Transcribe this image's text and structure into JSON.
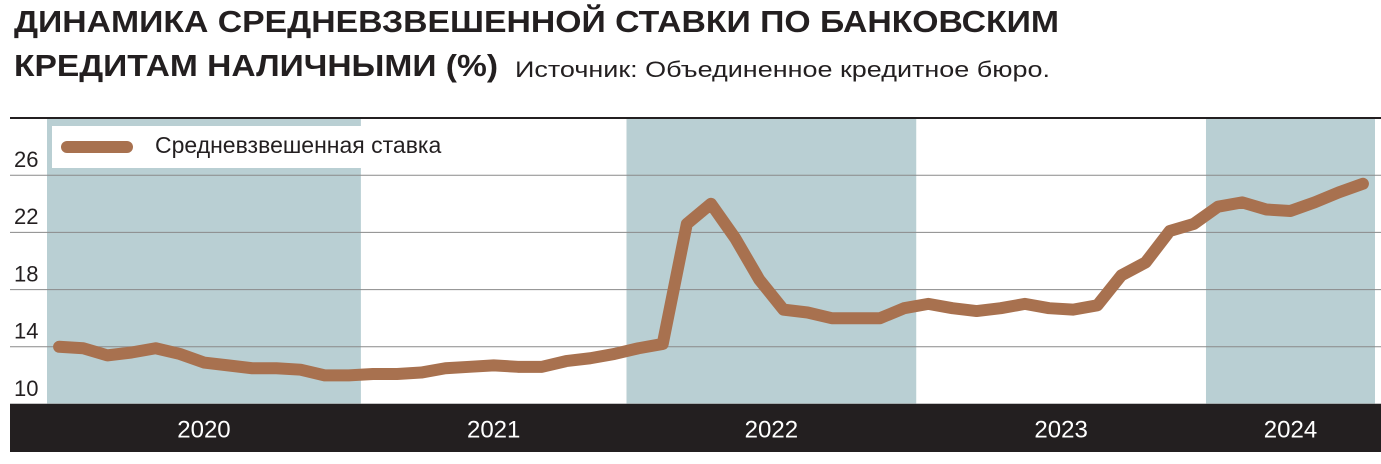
{
  "chart_data": {
    "type": "line",
    "title": [
      "ДИНАМИКА СРЕДНЕВЗВЕШЕННОЙ СТАВКИ ПО БАНКОВСКИМ",
      "КРЕДИТАМ НАЛИЧНЫМИ (%)"
    ],
    "source": "Источник: Объединенное кредитное бюро.",
    "categories": [
      "2020",
      "2020",
      "2020",
      "2020",
      "2020",
      "2020",
      "2020",
      "2020",
      "2020",
      "2020",
      "2020",
      "2020",
      "2020",
      "2021",
      "2021",
      "2021",
      "2021",
      "2021",
      "2021",
      "2021",
      "2021",
      "2021",
      "2021",
      "2021",
      "2022",
      "2022",
      "2022",
      "2022",
      "2022",
      "2022",
      "2022",
      "2022",
      "2022",
      "2022",
      "2022",
      "2022",
      "2023",
      "2023",
      "2023",
      "2023",
      "2023",
      "2023",
      "2023",
      "2023",
      "2023",
      "2023",
      "2023",
      "2023",
      "2024",
      "2024",
      "2024",
      "2024",
      "2024",
      "2024",
      "2024"
    ],
    "series": [
      {
        "name": "Средневзвешенная ставка",
        "color": "#a8714f",
        "values": [
          14.0,
          13.9,
          13.4,
          13.6,
          13.9,
          13.5,
          12.9,
          12.7,
          12.5,
          12.5,
          12.4,
          12.0,
          12.0,
          12.1,
          12.1,
          12.2,
          12.5,
          12.6,
          12.7,
          12.6,
          12.6,
          13.0,
          13.2,
          13.5,
          13.9,
          14.2,
          22.6,
          24.0,
          21.6,
          18.7,
          16.6,
          16.4,
          16.0,
          16.0,
          16.0,
          16.7,
          17.0,
          16.7,
          16.5,
          16.7,
          17.0,
          16.7,
          16.6,
          16.9,
          19.0,
          19.9,
          22.1,
          22.6,
          23.8,
          24.1,
          23.6,
          23.5,
          24.1,
          24.8,
          25.4
        ]
      }
    ],
    "ylim": [
      10,
      30
    ],
    "yticks": [
      10,
      14,
      18,
      22,
      26
    ],
    "grid": true,
    "band_color": "#b9cfd3",
    "legend": "upper left"
  }
}
